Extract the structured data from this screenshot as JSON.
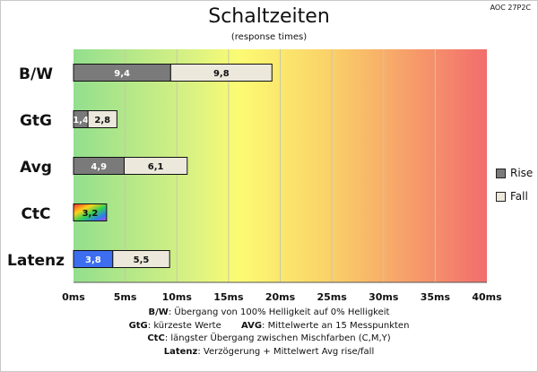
{
  "model": "AOC 27P2C",
  "chart_data": {
    "type": "bar",
    "title": "Schaltzeiten",
    "subtitle": "(response times)",
    "categories": [
      "B/W",
      "GtG",
      "Avg",
      "CtC",
      "Latenz"
    ],
    "series": [
      {
        "name": "Rise",
        "values": [
          9.4,
          1.4,
          4.9,
          3.2,
          3.8
        ],
        "labels": [
          "9,4",
          "1,4",
          "4,9",
          "3,2",
          "3,8"
        ]
      },
      {
        "name": "Fall",
        "values": [
          9.8,
          2.8,
          6.1,
          null,
          5.5
        ],
        "labels": [
          "9,8",
          "2,8",
          "6,1",
          "",
          "5,5"
        ]
      }
    ],
    "stacked": true,
    "xlim": [
      0,
      40
    ],
    "xticks": [
      "0ms",
      "5ms",
      "10ms",
      "15ms",
      "20ms",
      "25ms",
      "30ms",
      "35ms",
      "40ms"
    ],
    "legend_position": "right",
    "grid": true,
    "background": "gradient green to yellow to red",
    "colors": {
      "rise": "#7a7a7a",
      "fall": "#ece8dc",
      "latenz": "#3d6ef0",
      "ctc": "rainbow"
    }
  },
  "notes": [
    {
      "bold": "B/W",
      "text": ":  Übergang von 100% Helligkeit auf 0% Helligkeit"
    },
    {
      "bold": "GtG",
      "text": ": kürzeste  Werte",
      "bold2": "AVG",
      "text2": ": Mittelwerte  an 15 Messpunkten"
    },
    {
      "bold": "CtC",
      "text": ": längster Übergang  zwischen Mischfarben  (C,M,Y)"
    },
    {
      "bold": "Latenz",
      "text": ": Verzögerung  + Mittelwert  Avg rise/fall"
    }
  ]
}
